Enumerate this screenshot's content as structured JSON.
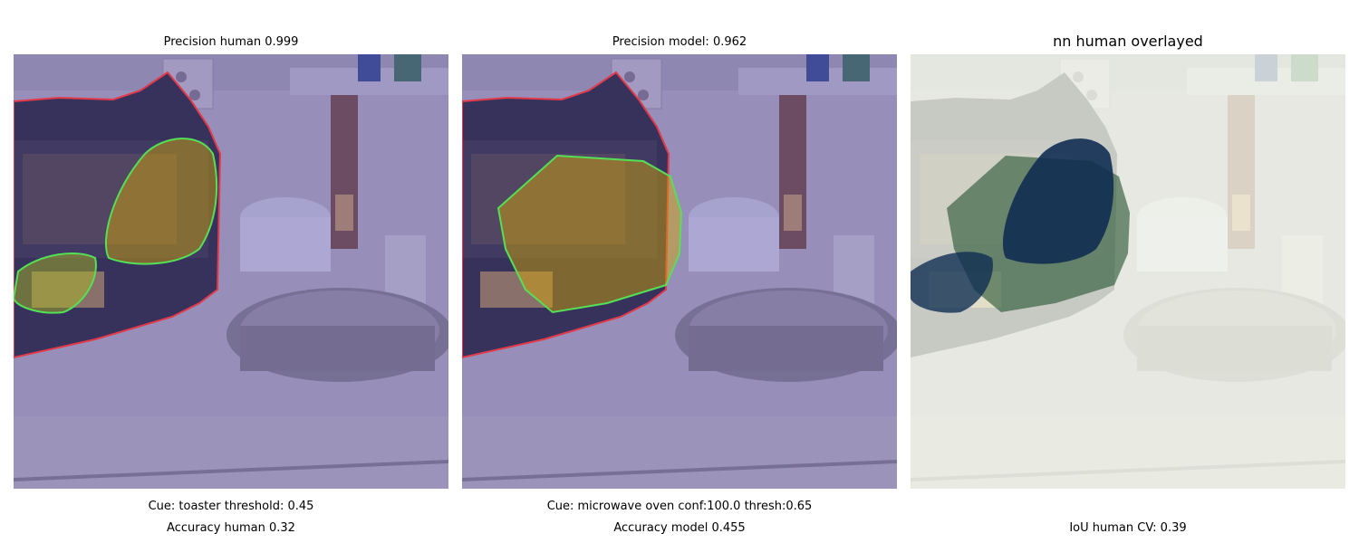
{
  "panels": [
    {
      "title": "Precision human 0.999",
      "captions": [
        "Cue: toaster threshold: 0.45",
        "Accuracy human 0.32"
      ]
    },
    {
      "title": "Precision model: 0.962",
      "captions": [
        "Cue: microwave oven conf:100.0 thresh:0.65",
        "Accuracy model 0.455"
      ]
    },
    {
      "title": "nn human overlayed",
      "captions": [
        "",
        "IoU human CV: 0.39"
      ]
    }
  ],
  "colors": {
    "tint_purple": "#5a4fa8",
    "outline_red": "#e23a4a",
    "outline_green": "#55e055",
    "overlay_pale": "#eef0e8",
    "overlay_navy": "#0f2e52",
    "overlay_green": "#2f5a3a"
  }
}
